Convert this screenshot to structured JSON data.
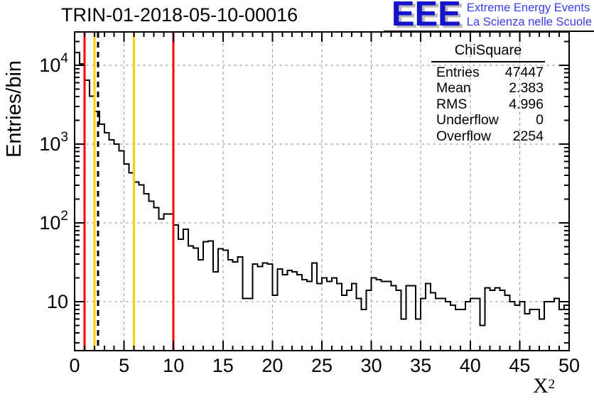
{
  "header": {
    "title": "TRIN-01-2018-05-10-00016",
    "logo": {
      "letters": "EEE",
      "line1": "Extreme Energy Events",
      "line2": "La Scienza nelle Scuole",
      "letters_color": "#1414cc",
      "text_color": "#3a3aee"
    }
  },
  "stats_box": {
    "title": "ChiSquare",
    "rows": [
      {
        "label": "Entries",
        "value": "47447"
      },
      {
        "label": "Mean",
        "value": "2.383"
      },
      {
        "label": "RMS",
        "value": "4.996"
      },
      {
        "label": "Underflow",
        "value": "0"
      },
      {
        "label": "Overflow",
        "value": "2254"
      }
    ]
  },
  "chart_data": {
    "type": "bar",
    "title": "TRIN-01-2018-05-10-00016",
    "xlabel": "X^2",
    "xlabel_base": "X",
    "xlabel_exp": "2",
    "ylabel": "Entries/bin",
    "xlim": [
      0,
      50
    ],
    "ylog": true,
    "ylim": [
      2.39,
      26500
    ],
    "grid": "dashed gray at major ticks",
    "grid_color": "#9a9a9a",
    "hist_color": "#000000",
    "x_ticks": [
      0,
      5,
      10,
      15,
      20,
      25,
      30,
      35,
      40,
      45,
      50
    ],
    "x_minor_step": 1,
    "y_ticks": [
      {
        "value": 10,
        "base": "10",
        "exp": ""
      },
      {
        "value": 100,
        "base": "10",
        "exp": "2"
      },
      {
        "value": 1000,
        "base": "10",
        "exp": "3"
      },
      {
        "value": 10000,
        "base": "10",
        "exp": "4"
      }
    ],
    "bins": {
      "start": 0,
      "width": 0.5,
      "count": 100
    },
    "counts": [
      14500,
      10400,
      6500,
      4070,
      2590,
      1790,
      1390,
      1130,
      1000,
      820,
      560,
      430,
      330,
      302,
      235,
      188,
      156,
      112,
      130,
      130,
      94,
      62,
      83,
      51,
      48,
      34,
      58,
      59,
      24,
      47,
      45,
      34,
      32,
      37,
      11,
      11,
      30,
      28,
      31,
      30,
      12,
      26,
      22,
      25,
      24,
      22,
      19,
      18,
      31,
      17,
      20,
      18,
      20,
      17,
      12,
      14,
      17,
      11,
      8,
      14,
      20,
      19,
      18,
      18,
      16,
      14,
      6,
      16,
      16,
      6,
      11,
      17,
      13,
      11,
      11,
      10,
      9,
      8,
      8,
      10,
      11,
      11,
      5,
      15,
      14,
      15,
      14,
      12,
      10,
      9,
      10,
      7,
      8,
      8,
      6,
      10,
      10,
      11,
      8,
      9
    ],
    "vlines": [
      {
        "x": 1,
        "color": "#ff0000",
        "style": "solid"
      },
      {
        "x": 2,
        "color": "#ffcc00",
        "style": "solid"
      },
      {
        "x": 2.383,
        "color": "#000000",
        "style": "dashed"
      },
      {
        "x": 6,
        "color": "#ffcc00",
        "style": "solid"
      },
      {
        "x": 10,
        "color": "#ff0000",
        "style": "solid"
      }
    ]
  }
}
